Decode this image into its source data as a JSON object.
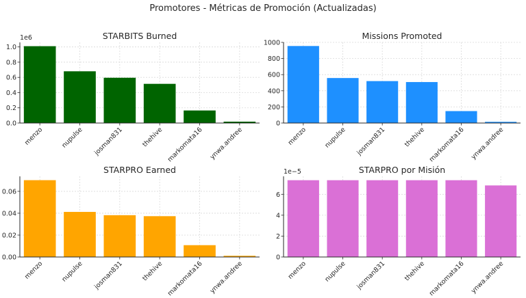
{
  "suptitle": "Promotores - Métricas de Promoción (Actualizadas)",
  "chart_data": [
    {
      "type": "bar",
      "title": "STARBITS Burned",
      "categories": [
        "menzo",
        "nupulse",
        "josman831",
        "thehive",
        "markomata16",
        "ynwa.andree"
      ],
      "values": [
        1010000,
        680000,
        595000,
        515000,
        165000,
        18000
      ],
      "offset_text": "1e6",
      "ylim": [
        0,
        1.06
      ],
      "yticks": [
        0,
        0.2,
        0.4,
        0.6,
        0.8,
        1.0
      ],
      "ytick_labels": [
        "0.0",
        "0.2",
        "0.4",
        "0.6",
        "0.8",
        "1.0"
      ],
      "color": "#006400",
      "grid": true
    },
    {
      "type": "bar",
      "title": "Missions Promoted",
      "categories": [
        "menzo",
        "nupulse",
        "josman831",
        "thehive",
        "markomata16",
        "ynwa.andree"
      ],
      "values": [
        955,
        558,
        520,
        508,
        148,
        15
      ],
      "ylim": [
        0,
        1000
      ],
      "yticks": [
        0,
        200,
        400,
        600,
        800,
        1000
      ],
      "ytick_labels": [
        "0",
        "200",
        "400",
        "600",
        "800",
        "1000"
      ],
      "color": "#1E90FF",
      "grid": true
    },
    {
      "type": "bar",
      "title": "STARPRO Earned",
      "categories": [
        "menzo",
        "nupulse",
        "josman831",
        "thehive",
        "markomata16",
        "ynwa.andree"
      ],
      "values": [
        0.0702,
        0.0412,
        0.0382,
        0.0373,
        0.0108,
        0.0011
      ],
      "ylim": [
        0,
        0.0737
      ],
      "yticks": [
        0,
        0.02,
        0.04,
        0.06
      ],
      "ytick_labels": [
        "0.00",
        "0.02",
        "0.04",
        "0.06"
      ],
      "color": "#FFA500",
      "grid": true
    },
    {
      "type": "bar",
      "title": "STARPRO por Misión",
      "categories": [
        "menzo",
        "nupulse",
        "josman831",
        "thehive",
        "markomata16",
        "ynwa.andree"
      ],
      "values": [
        7.35,
        7.35,
        7.35,
        7.35,
        7.35,
        6.85
      ],
      "offset_text": "1e−5",
      "ylim": [
        0,
        7.72
      ],
      "yticks": [
        0,
        2,
        4,
        6
      ],
      "ytick_labels": [
        "0",
        "2",
        "4",
        "6"
      ],
      "color": "#DA70D6",
      "grid": true
    }
  ]
}
